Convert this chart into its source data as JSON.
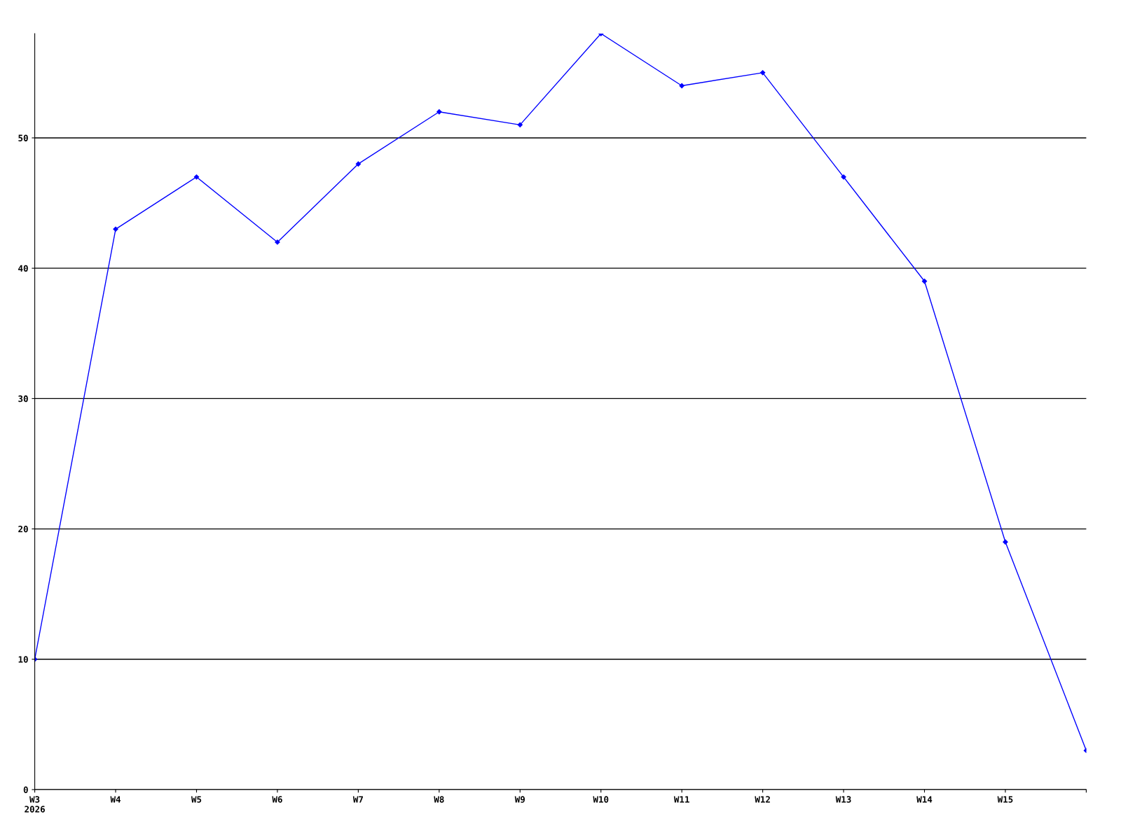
{
  "chart_data": {
    "type": "line",
    "categories": [
      "W3\n2026",
      "W4",
      "W5",
      "W6",
      "W7",
      "W8",
      "W9",
      "W10",
      "W11",
      "W12",
      "W13",
      "W14",
      "W15",
      null
    ],
    "series": [
      {
        "color": "#0000ff",
        "values": [
          10,
          43,
          47,
          42,
          48,
          52,
          51,
          58,
          54,
          55,
          47,
          39,
          19,
          3
        ]
      }
    ],
    "ylim": [
      0,
      58
    ],
    "yticks": [
      0,
      10,
      20,
      30,
      40,
      50
    ],
    "grid": "y",
    "marker": "diamond",
    "line_style": "solid",
    "legend": false
  }
}
